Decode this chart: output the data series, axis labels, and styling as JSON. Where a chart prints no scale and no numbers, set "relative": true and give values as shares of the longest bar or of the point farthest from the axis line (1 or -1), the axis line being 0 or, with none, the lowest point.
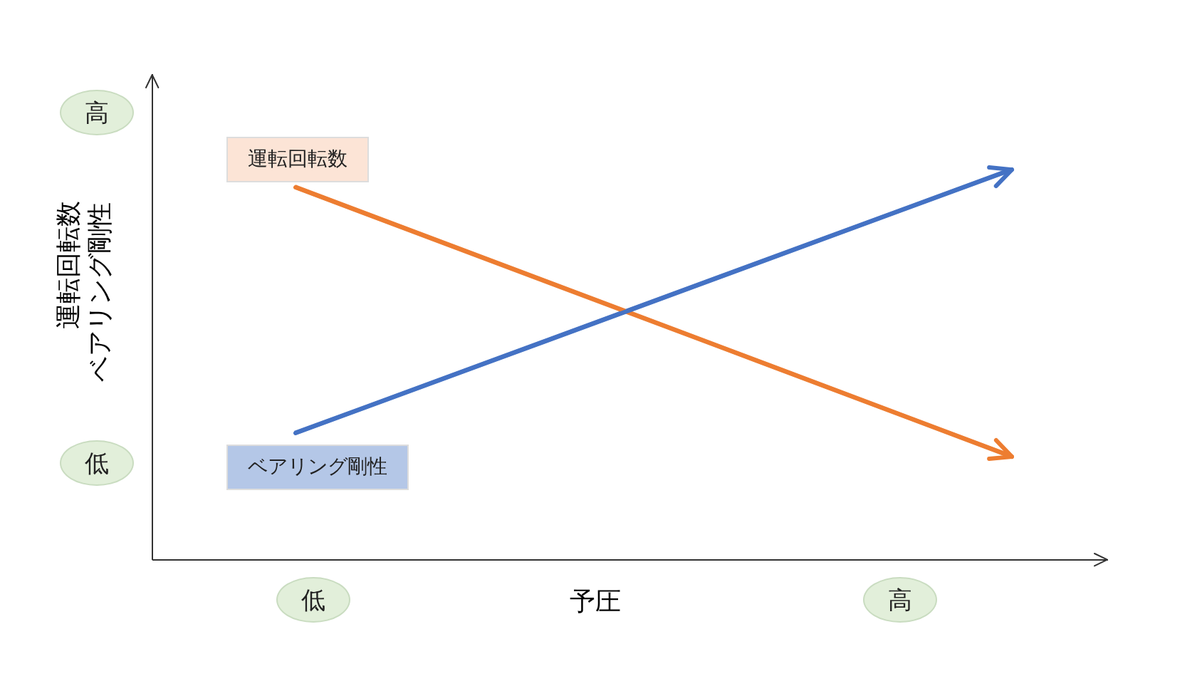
{
  "chart_data": {
    "type": "line",
    "relative": true,
    "xlabel": "予圧",
    "ylabel": "運転回転数ベアリング剛性",
    "categories": [
      null,
      null
    ],
    "series": [
      {
        "name": "運転回転数",
        "color": "#ed7d31",
        "values": [
          0.956,
          0.266
        ]
      },
      {
        "name": "ベアリング剛性",
        "color": "#4472c4",
        "values": [
          0.325,
          1
        ]
      }
    ],
    "annotations": [
      "高",
      "低",
      "低",
      "高"
    ],
    "legend": false,
    "grid": false,
    "marker": "none",
    "line_style": "solid"
  }
}
